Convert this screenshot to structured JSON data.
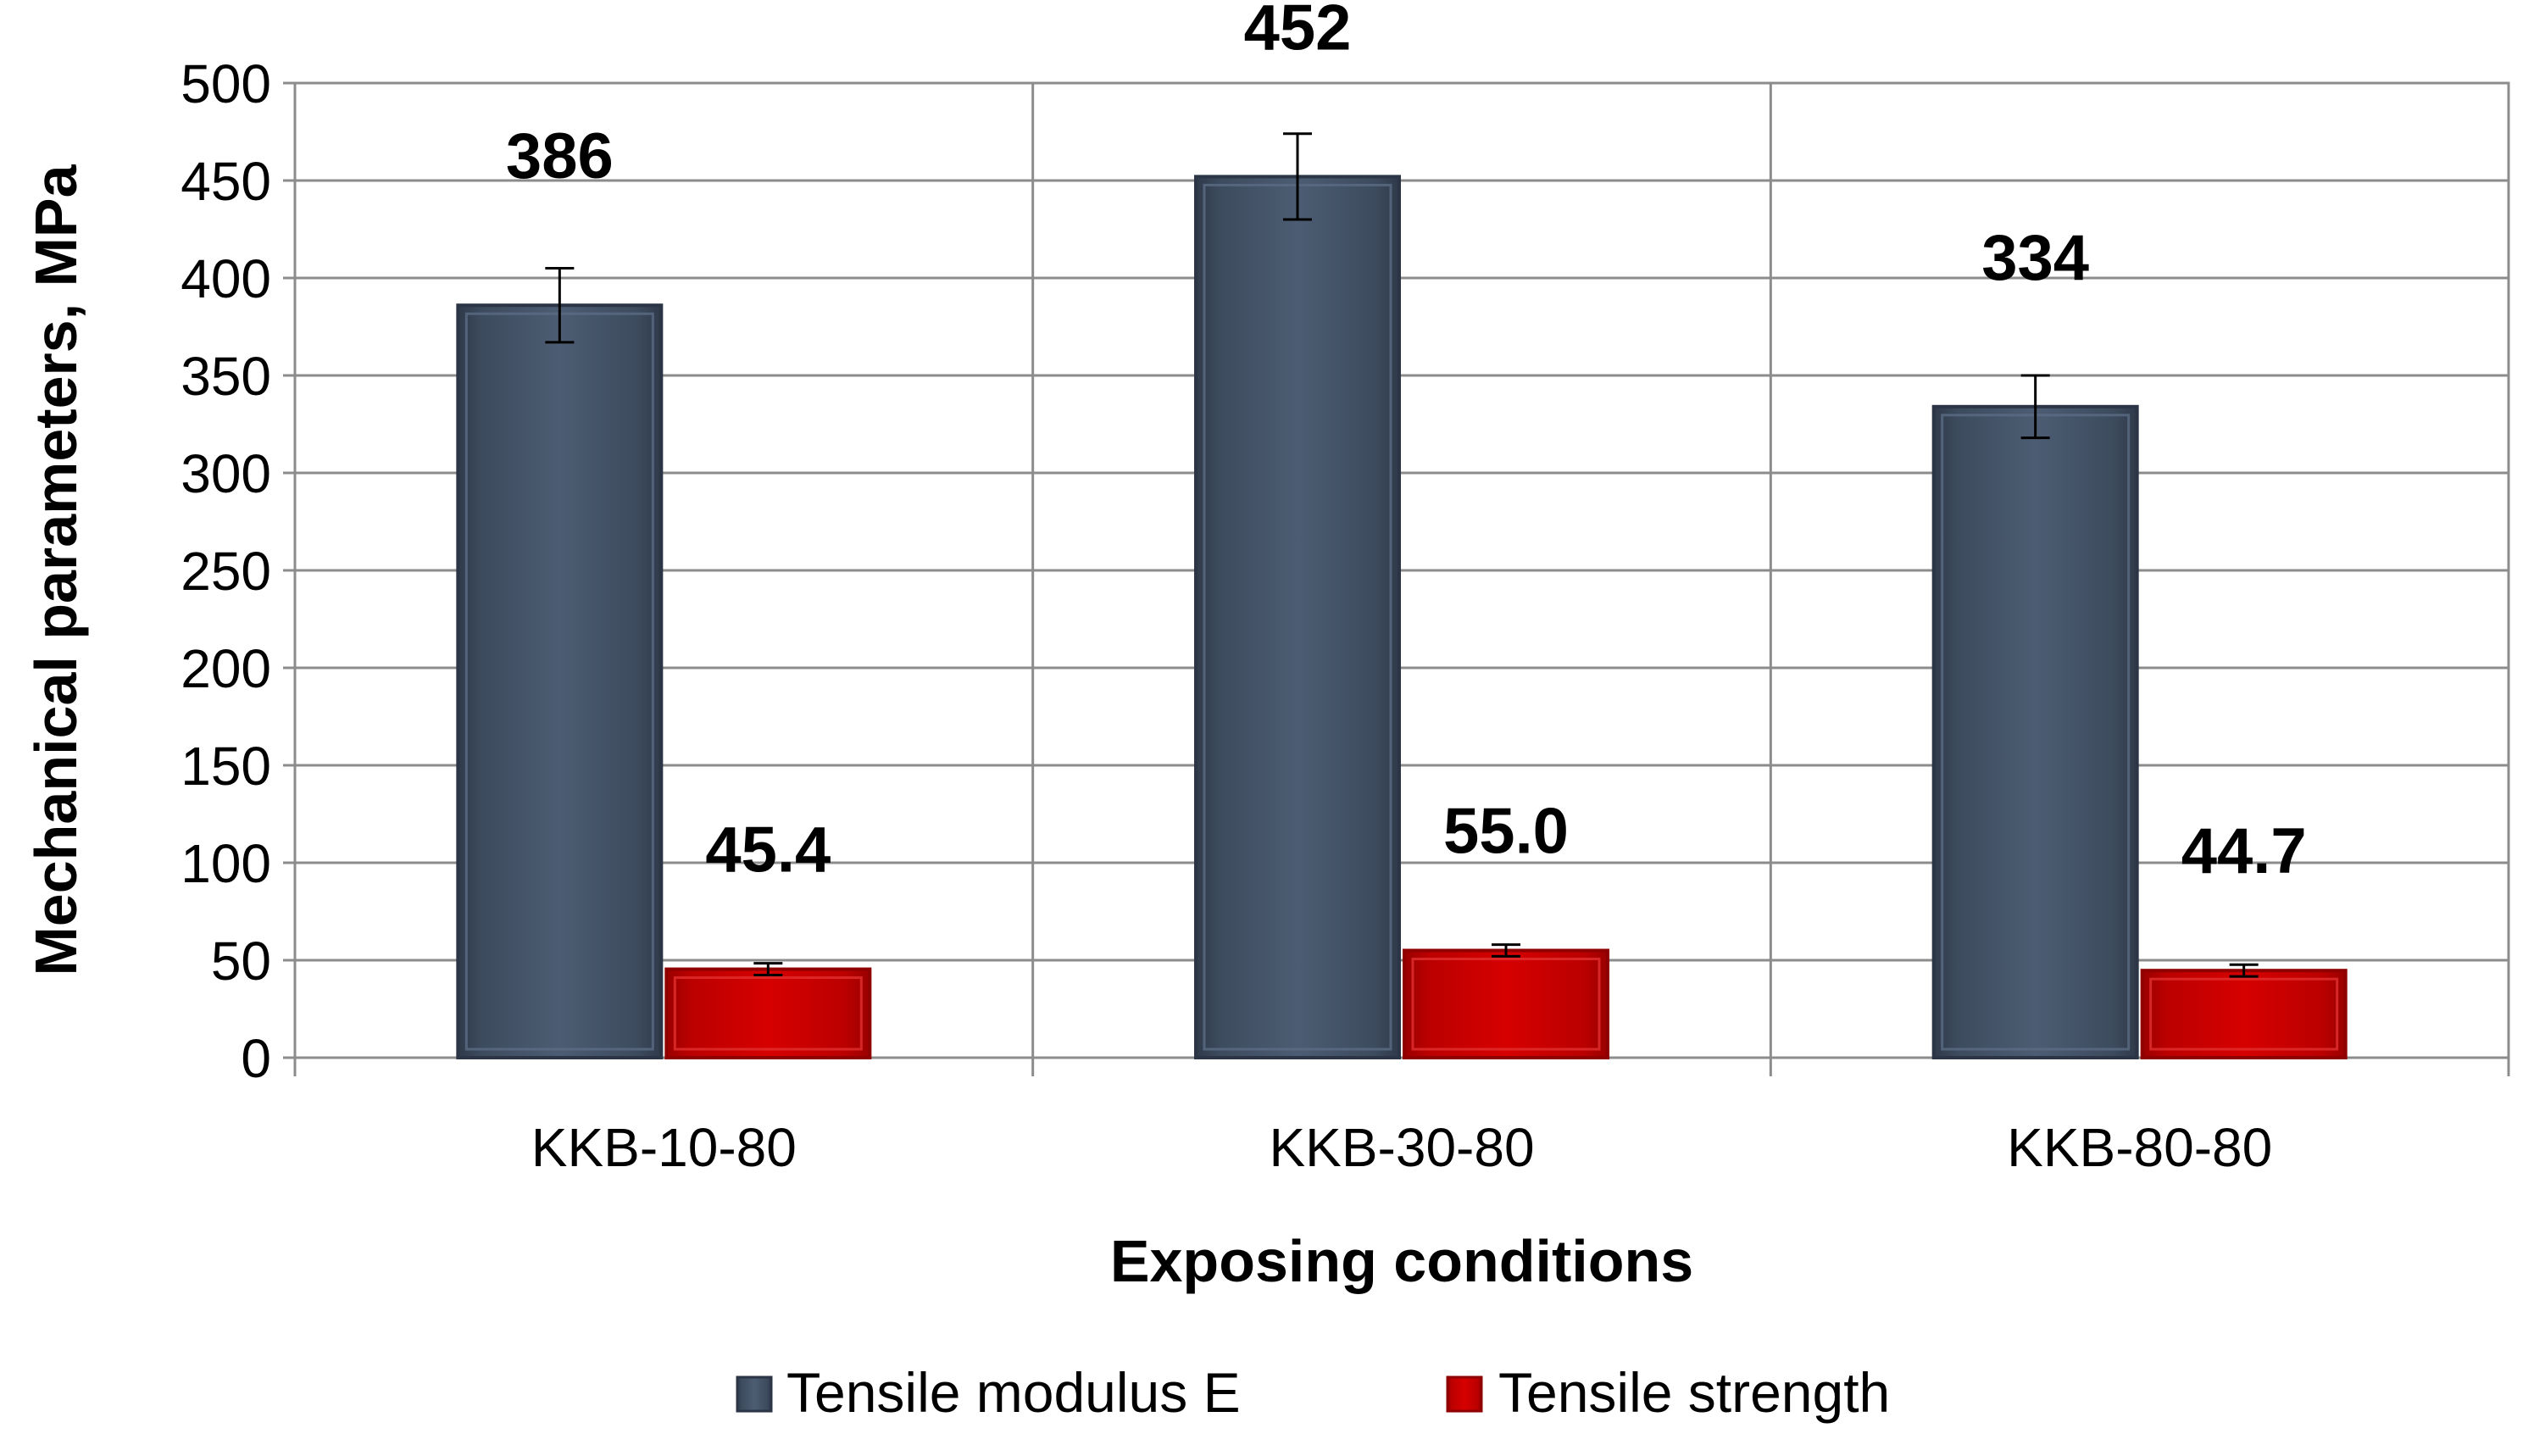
{
  "chart_data": {
    "type": "bar",
    "title": "",
    "xlabel": "Exposing conditions",
    "ylabel": "Mechanical  parameters, MPa",
    "ylim": [
      0,
      500
    ],
    "ytick_step": 50,
    "grid": true,
    "legend_position": "bottom",
    "categories": [
      "KKB-10-80",
      "KKB-30-80",
      "KKB-80-80"
    ],
    "series": [
      {
        "name": "Tensile modulus E",
        "color": "#4a596e",
        "color_dark": "#2b3545",
        "values": [
          386,
          452,
          334
        ],
        "labels": [
          "386",
          "452",
          "334"
        ],
        "error": [
          19,
          22,
          16
        ]
      },
      {
        "name": "Tensile strength",
        "color": "#cc0000",
        "color_dark": "#8f0000",
        "values": [
          45.4,
          55.0,
          44.7
        ],
        "labels": [
          "45.4",
          "55.0",
          "44.7"
        ],
        "error": [
          3,
          3,
          3
        ]
      }
    ]
  }
}
